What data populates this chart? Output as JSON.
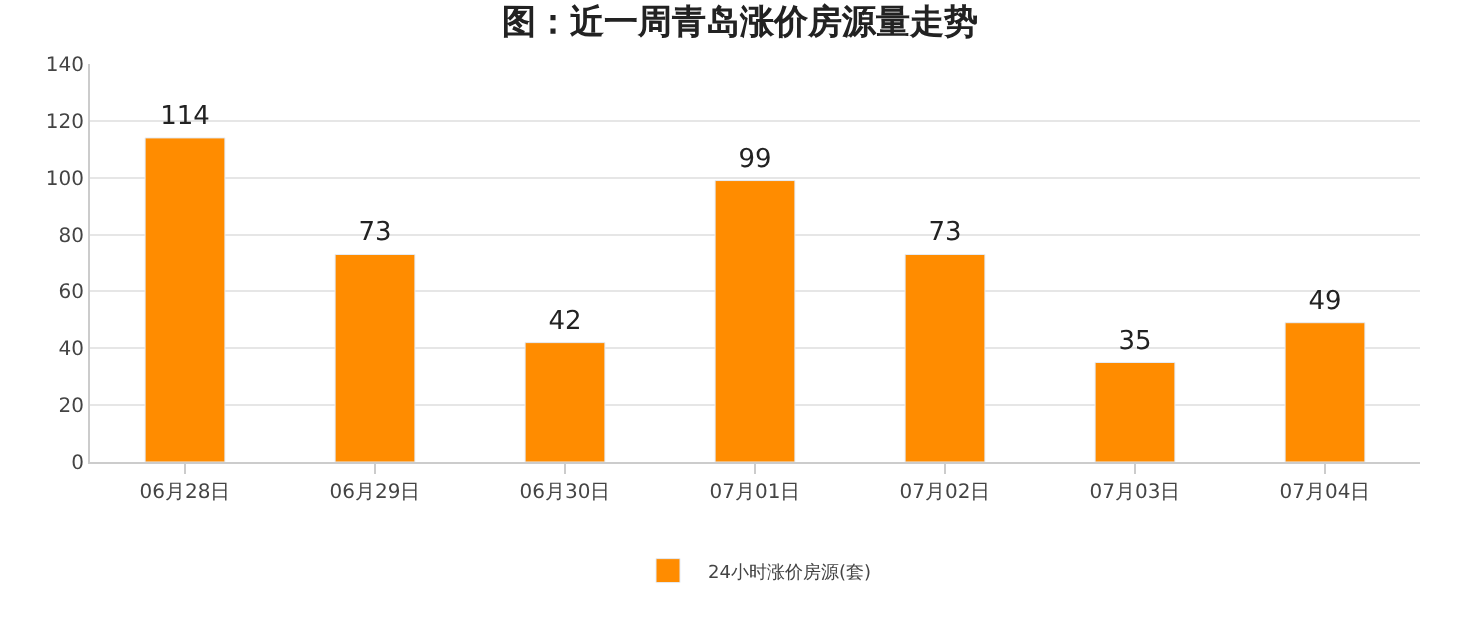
{
  "chart_data": {
    "type": "bar",
    "title": "图：近一周青岛涨价房源量走势",
    "categories": [
      "06月28日",
      "06月29日",
      "06月30日",
      "07月01日",
      "07月02日",
      "07月03日",
      "07月04日"
    ],
    "series": [
      {
        "name": "24小时涨价房源(套)",
        "color": "#ff8c00",
        "values": [
          114,
          73,
          42,
          99,
          73,
          35,
          49
        ]
      }
    ],
    "ylim": [
      0,
      140
    ],
    "yticks": [
      0,
      20,
      40,
      60,
      80,
      100,
      120,
      140
    ],
    "grid": "y",
    "legend": "bottom",
    "data_labels": true
  }
}
